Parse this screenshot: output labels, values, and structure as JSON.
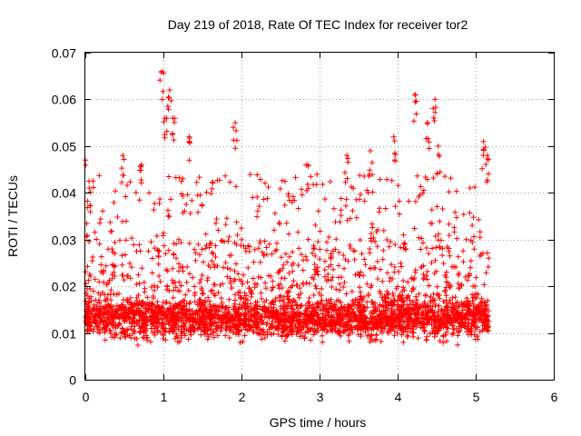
{
  "chart_data": {
    "type": "scatter",
    "title": "Day 219 of 2018, Rate Of TEC Index for receiver tor2",
    "xlabel": "GPS time / hours",
    "ylabel": "ROTI / TECUs",
    "xlim": [
      0,
      6
    ],
    "ylim": [
      0,
      0.07
    ],
    "x_ticks": [
      "0",
      "1",
      "2",
      "3",
      "4",
      "5",
      "6"
    ],
    "y_ticks": [
      "0",
      "0.01",
      "0.02",
      "0.03",
      "0.04",
      "0.05",
      "0.06",
      "0.07"
    ],
    "grid": true,
    "marker": "+",
    "color": "#ff0000",
    "series": [
      {
        "name": "ROTI",
        "x_range_hours": [
          0.0,
          5.17
        ],
        "typical_range": [
          0.004,
          0.03
        ],
        "baseline_mean": 0.011,
        "notable_peaks": [
          {
            "x": 0.0,
            "y": 0.047
          },
          {
            "x": 0.05,
            "y": 0.041
          },
          {
            "x": 0.48,
            "y": 0.048
          },
          {
            "x": 0.72,
            "y": 0.046
          },
          {
            "x": 0.98,
            "y": 0.066
          },
          {
            "x": 1.02,
            "y": 0.056
          },
          {
            "x": 1.08,
            "y": 0.062
          },
          {
            "x": 1.12,
            "y": 0.056
          },
          {
            "x": 1.33,
            "y": 0.052
          },
          {
            "x": 1.92,
            "y": 0.055
          },
          {
            "x": 2.85,
            "y": 0.046
          },
          {
            "x": 3.35,
            "y": 0.048
          },
          {
            "x": 3.65,
            "y": 0.049
          },
          {
            "x": 3.95,
            "y": 0.052
          },
          {
            "x": 4.22,
            "y": 0.061
          },
          {
            "x": 4.38,
            "y": 0.055
          },
          {
            "x": 4.48,
            "y": 0.06
          },
          {
            "x": 4.52,
            "y": 0.05
          },
          {
            "x": 5.1,
            "y": 0.051
          },
          {
            "x": 5.15,
            "y": 0.048
          }
        ]
      }
    ]
  }
}
